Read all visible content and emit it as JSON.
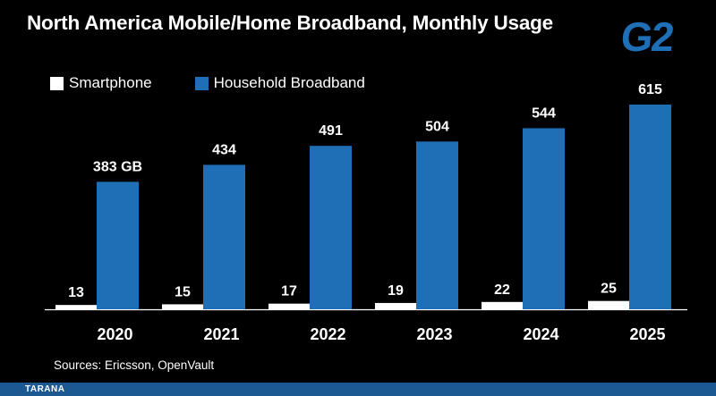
{
  "title": "North America Mobile/Home Broadband, Monthly Usage",
  "logo_text": "G2",
  "footer_logo_text": "TARANA",
  "sources": "Sources:  Ericsson, OpenVault",
  "colors": {
    "background": "#000000",
    "smartphone": "#ffffff",
    "household": "#1f6fb7",
    "logo": "#1f6fb7",
    "footer_bar": "#1c5891"
  },
  "chart_data": {
    "type": "bar",
    "title": "North America Mobile/Home Broadband, Monthly Usage",
    "xlabel": "",
    "ylabel": "",
    "categories": [
      "2020",
      "2021",
      "2022",
      "2023",
      "2024",
      "2025"
    ],
    "series": [
      {
        "name": "Smartphone",
        "values": [
          13,
          15,
          17,
          19,
          22,
          25
        ],
        "labels": [
          "13",
          "15",
          "17",
          "19",
          "22",
          "25"
        ]
      },
      {
        "name": "Household Broadband",
        "values": [
          383,
          434,
          491,
          504,
          544,
          615
        ],
        "labels": [
          "383 GB",
          "434",
          "491",
          "504",
          "544",
          "615"
        ]
      }
    ],
    "ylim": [
      0,
      615
    ],
    "grid": false,
    "legend_position": "top-left"
  }
}
